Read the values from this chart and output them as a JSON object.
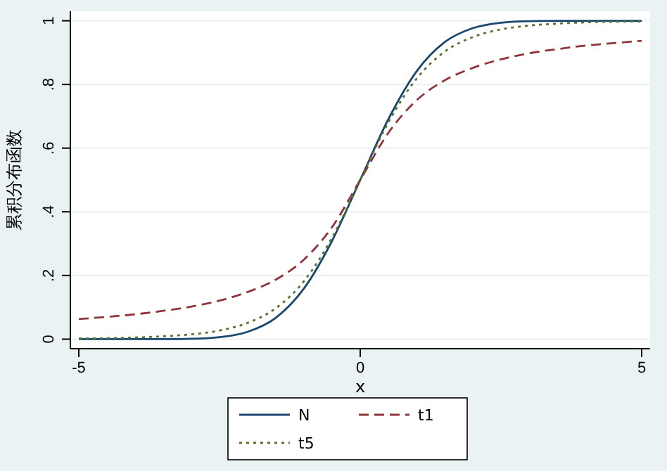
{
  "chart_data": {
    "type": "line",
    "xlabel": "x",
    "ylabel": "累积分布函数",
    "x": [
      -5,
      -4.5,
      -4,
      -3.5,
      -3,
      -2.5,
      -2,
      -1.5,
      -1,
      -0.5,
      0,
      0.5,
      1,
      1.5,
      2,
      2.5,
      3,
      3.5,
      4,
      4.5,
      5
    ],
    "series": [
      {
        "name": "N",
        "color": "#1a476f",
        "line_style": "solid",
        "values": [
          0,
          0,
          0,
          0,
          0.001,
          0.006,
          0.023,
          0.067,
          0.159,
          0.309,
          0.5,
          0.691,
          0.841,
          0.933,
          0.977,
          0.994,
          0.999,
          1,
          1,
          1,
          1
        ]
      },
      {
        "name": "t1",
        "color": "#90353b",
        "line_style": "dashed",
        "values": [
          0.063,
          0.07,
          0.078,
          0.089,
          0.102,
          0.121,
          0.148,
          0.187,
          0.25,
          0.352,
          0.5,
          0.648,
          0.75,
          0.813,
          0.852,
          0.879,
          0.898,
          0.911,
          0.922,
          0.93,
          0.937
        ]
      },
      {
        "name": "t5",
        "color": "#55752f",
        "line_style": "dotted",
        "values": [
          0.002,
          0.003,
          0.005,
          0.009,
          0.015,
          0.027,
          0.051,
          0.097,
          0.182,
          0.319,
          0.5,
          0.681,
          0.818,
          0.903,
          0.949,
          0.973,
          0.985,
          0.991,
          0.995,
          0.997,
          0.998
        ]
      }
    ],
    "xlim": [
      -5.15,
      5.15
    ],
    "ylim": [
      -0.03,
      1.03
    ],
    "xticks": [
      -5,
      0,
      5
    ],
    "yticks": [
      0,
      {
        "value": 0.2,
        "label": ".2"
      },
      {
        "value": 0.4,
        "label": ".4"
      },
      {
        "value": 0.6,
        "label": ".6"
      },
      {
        "value": 0.8,
        "label": ".8"
      },
      1
    ],
    "grid": "y",
    "legend": "bottom",
    "marker": "none"
  }
}
